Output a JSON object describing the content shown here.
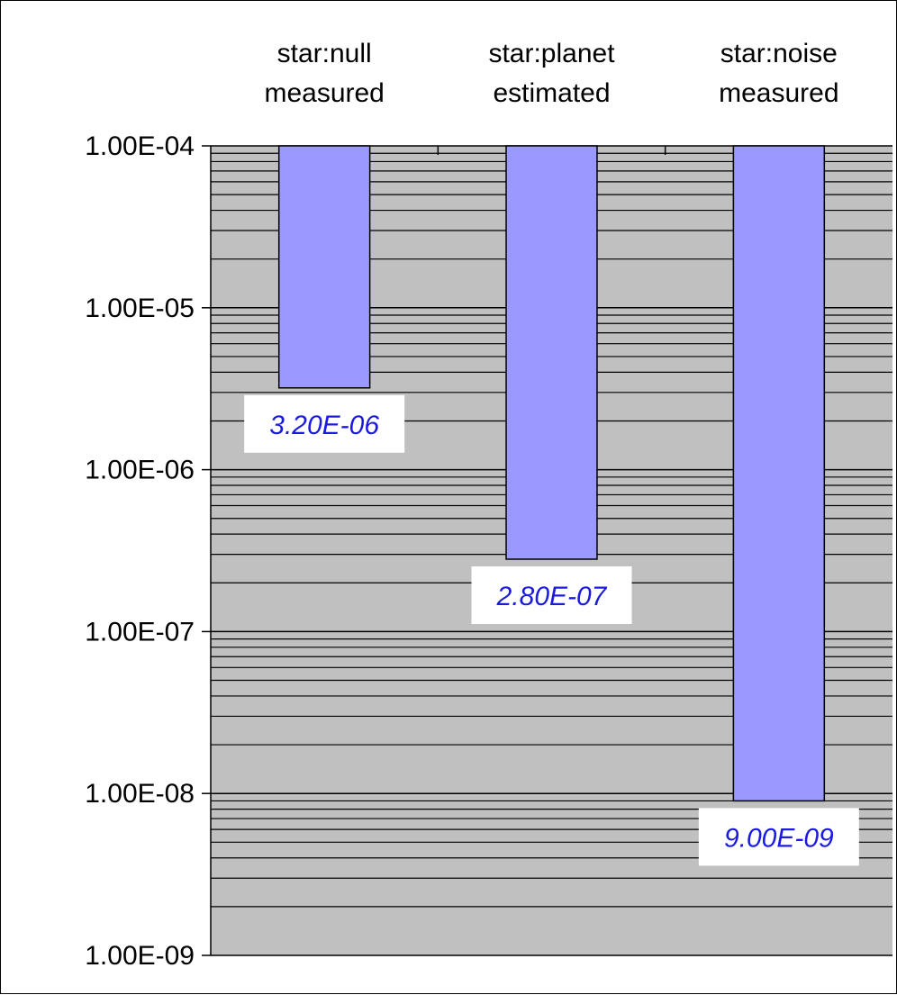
{
  "chart_data": {
    "type": "bar",
    "orientation": "vertical",
    "y_scale": "log",
    "bars_hang_from_top": true,
    "categories": [
      [
        "star:null",
        "measured"
      ],
      [
        "star:planet",
        "estimated"
      ],
      [
        "star:noise",
        "measured"
      ]
    ],
    "values": [
      3.2e-06,
      2.8e-07,
      9e-09
    ],
    "data_labels": [
      "3.20E-06",
      "2.80E-07",
      "9.00E-09"
    ],
    "y_ticks": [
      0.0001,
      1e-05,
      1e-06,
      1e-07,
      1e-08,
      1e-09
    ],
    "y_tick_labels": [
      "1.00E-04",
      "1.00E-05",
      "1.00E-06",
      "1.00E-07",
      "1.00E-08",
      "1.00E-09"
    ],
    "ylim": [
      1e-09,
      0.0001
    ],
    "x_axis_position": "top",
    "grid": true,
    "colors": {
      "bar": "#9999ff",
      "bar_border": "#000000",
      "plot_background": "#c0c0c0",
      "gridline": "#000000",
      "data_label_text": "#1a1ae0",
      "data_label_background": "#ffffff"
    }
  }
}
